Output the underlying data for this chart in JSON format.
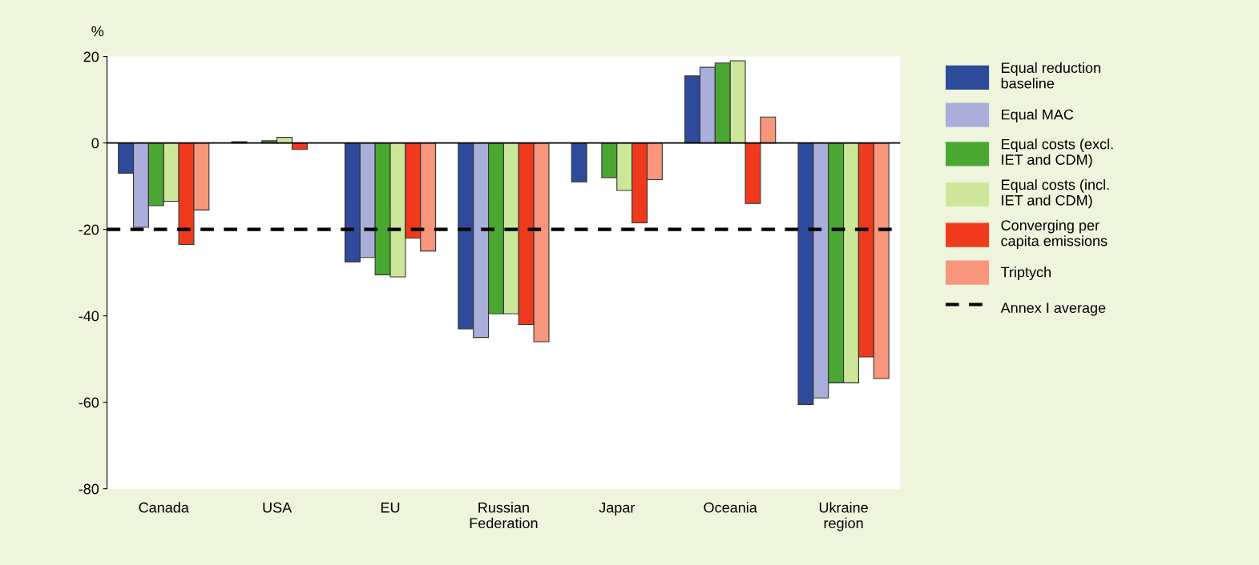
{
  "chart_data": {
    "type": "bar",
    "ylabel": "%",
    "categories": [
      "Canada",
      "USA",
      "EU",
      "Russian\nFederation",
      "Japar",
      "Oceania",
      "Ukraine\nregion"
    ],
    "series": [
      {
        "name": "Equal reduction\nbaseline",
        "color": "#2e4a9a",
        "values": [
          -7,
          0.3,
          -27.5,
          -43,
          -9,
          15.5,
          -60.5
        ]
      },
      {
        "name": "Equal MAC",
        "color": "#aaaedb",
        "values": [
          -19.5,
          null,
          -26.5,
          -45,
          null,
          17.5,
          -59
        ]
      },
      {
        "name": "Equal costs (excl.\nIET and CDM)",
        "color": "#4aa832",
        "values": [
          -14.5,
          0.5,
          -30.5,
          -39.5,
          -8,
          18.5,
          -55.5
        ]
      },
      {
        "name": "Equal costs (incl.\nIET and CDM)",
        "color": "#cce79a",
        "values": [
          -13.5,
          1.3,
          -31,
          -39.5,
          -11,
          19,
          -55.5
        ]
      },
      {
        "name": "Converging per\ncapita emissions",
        "color": "#f03a1e",
        "values": [
          -23.5,
          -1.5,
          -22,
          -42,
          -18.5,
          -14,
          -49.5
        ]
      },
      {
        "name": "Triptych",
        "color": "#f7967a",
        "values": [
          -15.5,
          null,
          -25,
          -46,
          -8.5,
          6,
          -54.5
        ]
      }
    ],
    "ylim": [
      -80,
      20
    ],
    "yticks": [
      -80,
      -60,
      -40,
      -20,
      0,
      20
    ],
    "grid": false,
    "legend": "right",
    "ref_lines": [
      {
        "axis": "y",
        "value": 0,
        "color": "#000000",
        "line_style": "solid"
      },
      {
        "axis": "y",
        "value": -20,
        "label": "Annex I average",
        "color": "#000000",
        "line_style": "dashed"
      }
    ]
  }
}
